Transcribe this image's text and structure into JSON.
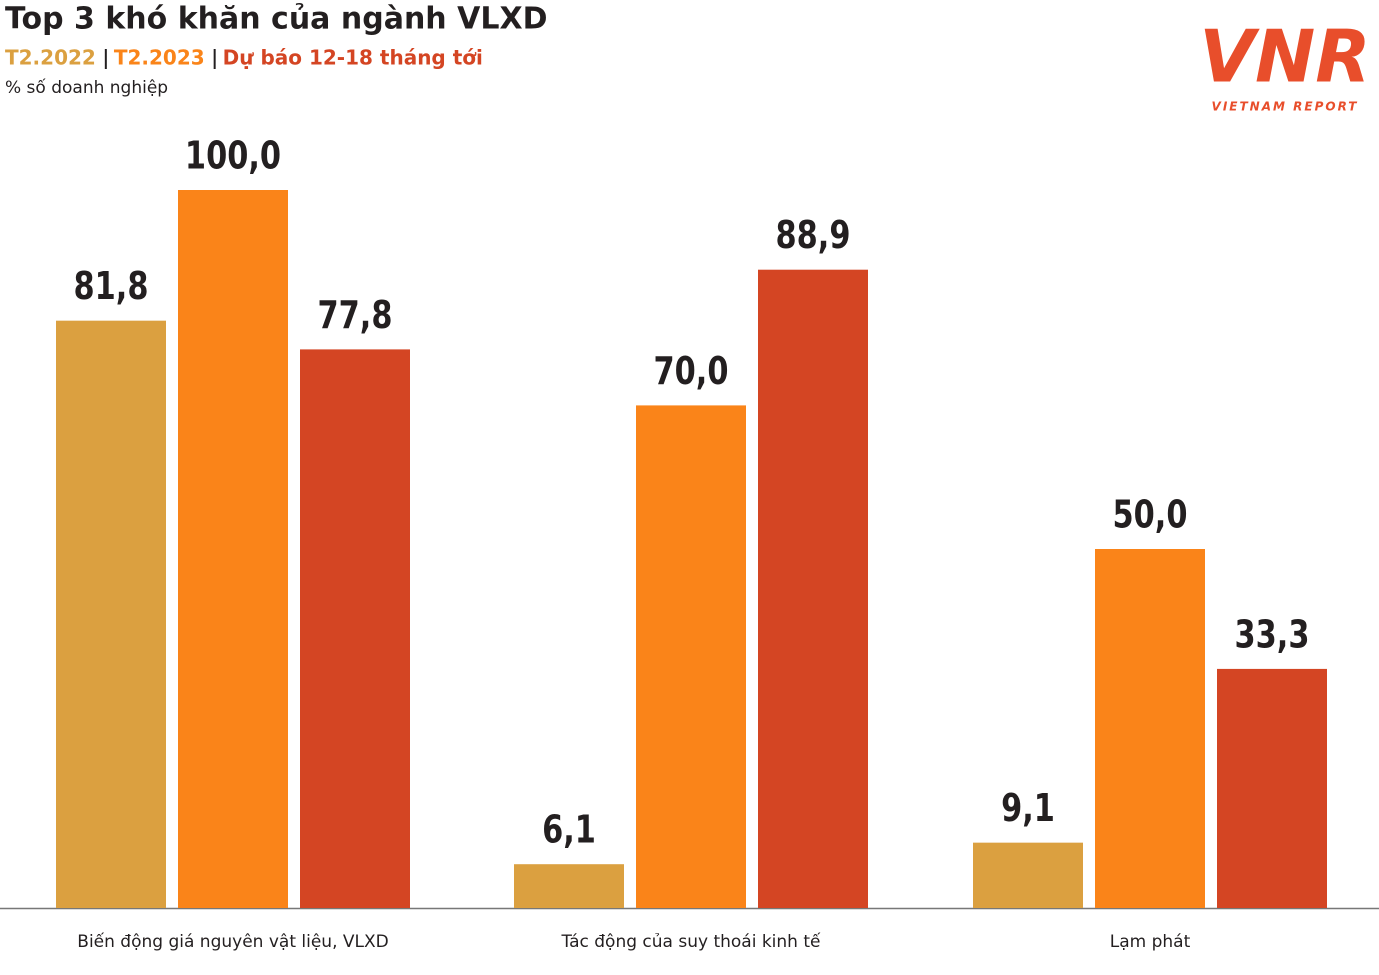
{
  "chart_data": {
    "type": "bar",
    "title": "Top 3 khó khăn của ngành VLXD",
    "y_label": "% số doanh nghiệp",
    "categories": [
      "Biến động giá nguyên vật liệu, VLXD",
      "Tác động của suy thoái kinh tế",
      "Lạm phát"
    ],
    "series": [
      {
        "name": "T2.2022",
        "color": "#dba040",
        "values": [
          81.8,
          6.1,
          9.1
        ],
        "value_labels": [
          "81,8",
          "6,1",
          "9,1"
        ]
      },
      {
        "name": "T2.2023",
        "color": "#fa8419",
        "values": [
          100.0,
          70.0,
          50.0
        ],
        "value_labels": [
          "100,0",
          "70,0",
          "50,0"
        ]
      },
      {
        "name": "Dự báo 12-18 tháng tới",
        "color": "#d44523",
        "values": [
          77.8,
          88.9,
          33.3
        ],
        "value_labels": [
          "77,8",
          "88,9",
          "33,3"
        ]
      }
    ],
    "ylim": [
      0,
      100
    ]
  },
  "logo": {
    "mark": "VNR",
    "name": "VIETNAM REPORT"
  }
}
